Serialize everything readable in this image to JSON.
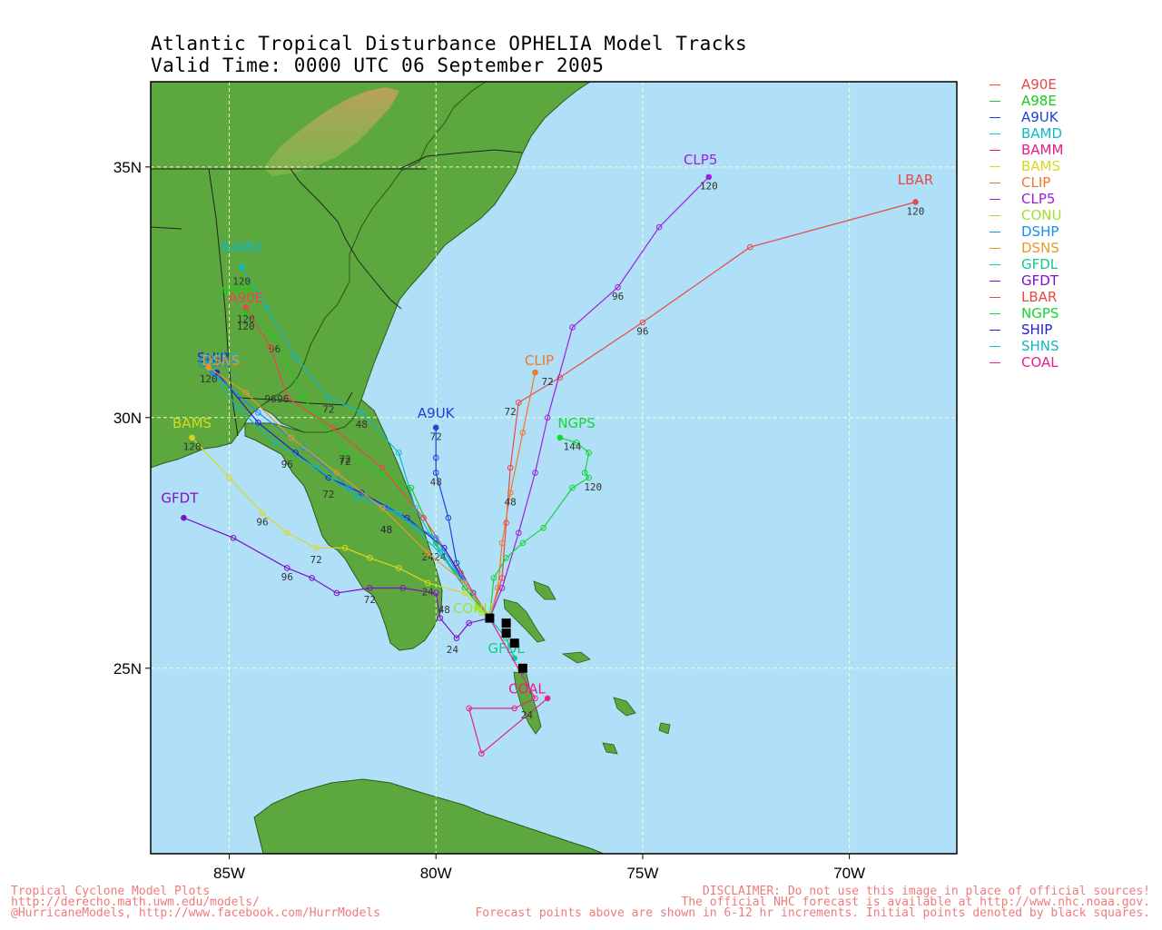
{
  "title": {
    "line1": "Atlantic Tropical Disturbance OPHELIA Model Tracks",
    "line2": "Valid Time: 0000 UTC 06 September 2005"
  },
  "map": {
    "lon_range": [
      -86.9,
      -67.4
    ],
    "lat_range": [
      21.3,
      36.7
    ],
    "lon_ticks": [
      {
        "lon": -85,
        "label": "85W"
      },
      {
        "lon": -80,
        "label": "80W"
      },
      {
        "lon": -75,
        "label": "75W"
      },
      {
        "lon": -70,
        "label": "70W"
      }
    ],
    "lat_ticks": [
      {
        "lat": 35,
        "label": "35N"
      },
      {
        "lat": 30,
        "label": "30N"
      },
      {
        "lat": 25,
        "label": "25N"
      }
    ],
    "ocean_color": "#b0e0f8",
    "land_color": "#55a33b",
    "grid": true
  },
  "legend": [
    {
      "name": "A90E",
      "color": "#e84848"
    },
    {
      "name": "A98E",
      "color": "#1ec81e"
    },
    {
      "name": "A9UK",
      "color": "#2040d8"
    },
    {
      "name": "BAMD",
      "color": "#10b8c8"
    },
    {
      "name": "BAMM",
      "color": "#e81e8c"
    },
    {
      "name": "BAMS",
      "color": "#d8d820"
    },
    {
      "name": "CLIP",
      "color": "#f07828"
    },
    {
      "name": "CLP5",
      "color": "#a020d8"
    },
    {
      "name": "CONU",
      "color": "#a0e030"
    },
    {
      "name": "DSHP",
      "color": "#1890e8"
    },
    {
      "name": "DSNS",
      "color": "#e89828"
    },
    {
      "name": "GFDL",
      "color": "#10c890"
    },
    {
      "name": "GFDT",
      "color": "#8010c8"
    },
    {
      "name": "LBAR",
      "color": "#e84848"
    },
    {
      "name": "NGPS",
      "color": "#10d830"
    },
    {
      "name": "SHIP",
      "color": "#2020d8"
    },
    {
      "name": "SHNS",
      "color": "#10b8c0"
    },
    {
      "name": "COAL",
      "color": "#e81e8c"
    }
  ],
  "tracks": [
    {
      "name": "LBAR",
      "color": "#e84848",
      "label_at": [
        -68.4,
        34.65
      ],
      "points": [
        [
          -78.7,
          26.0
        ],
        [
          -78.4,
          26.8
        ],
        [
          -78.3,
          27.9
        ],
        [
          -78.2,
          29.0
        ],
        [
          -78.0,
          30.3
        ],
        [
          -77.0,
          30.8
        ],
        [
          -75.0,
          31.9
        ],
        [
          -72.4,
          33.4
        ],
        [
          -68.4,
          34.3
        ]
      ],
      "hour_labels": [
        {
          "text": "72",
          "at": [
            -78.2,
            30.05
          ]
        },
        {
          "text": "96",
          "at": [
            -75.0,
            31.65
          ]
        },
        {
          "text": "120",
          "at": [
            -68.4,
            34.05
          ]
        }
      ]
    },
    {
      "name": "CLP5",
      "color": "#a020d8",
      "label_at": [
        -73.6,
        35.05
      ],
      "points": [
        [
          -78.7,
          26.0
        ],
        [
          -78.4,
          26.6
        ],
        [
          -78.0,
          27.7
        ],
        [
          -77.6,
          28.9
        ],
        [
          -77.3,
          30.0
        ],
        [
          -76.7,
          31.8
        ],
        [
          -75.6,
          32.6
        ],
        [
          -74.6,
          33.8
        ],
        [
          -73.4,
          34.8
        ]
      ],
      "hour_labels": [
        {
          "text": "72",
          "at": [
            -77.3,
            30.65
          ]
        },
        {
          "text": "96",
          "at": [
            -75.6,
            32.35
          ]
        },
        {
          "text": "120",
          "at": [
            -73.4,
            34.55
          ]
        }
      ]
    },
    {
      "name": "CLIP",
      "color": "#f07828",
      "label_at": [
        -77.5,
        31.05
      ],
      "points": [
        [
          -78.7,
          26.0
        ],
        [
          -78.5,
          26.6
        ],
        [
          -78.4,
          27.5
        ],
        [
          -78.2,
          28.5
        ],
        [
          -77.9,
          29.7
        ],
        [
          -77.6,
          30.9
        ]
      ],
      "hour_labels": [
        {
          "text": "48",
          "at": [
            -78.2,
            28.25
          ]
        }
      ]
    },
    {
      "name": "NGPS",
      "color": "#10d830",
      "label_at": [
        -76.6,
        29.8
      ],
      "points": [
        [
          -78.7,
          26.0
        ],
        [
          -78.6,
          26.8
        ],
        [
          -78.3,
          27.2
        ],
        [
          -77.9,
          27.5
        ],
        [
          -77.4,
          27.8
        ],
        [
          -76.7,
          28.6
        ],
        [
          -76.3,
          28.8
        ],
        [
          -76.4,
          28.9
        ],
        [
          -76.3,
          29.3
        ],
        [
          -76.6,
          29.5
        ],
        [
          -77.0,
          29.6
        ]
      ],
      "hour_labels": [
        {
          "text": "144",
          "at": [
            -76.7,
            29.35
          ]
        },
        {
          "text": "120",
          "at": [
            -76.2,
            28.55
          ]
        }
      ]
    },
    {
      "name": "A9UK",
      "color": "#2040d8",
      "label_at": [
        -80.0,
        30.0
      ],
      "points": [
        [
          -78.7,
          26.0
        ],
        [
          -79.1,
          26.5
        ],
        [
          -79.5,
          27.1
        ],
        [
          -79.7,
          28.0
        ],
        [
          -80.0,
          28.9
        ],
        [
          -80.0,
          29.2
        ],
        [
          -80.0,
          29.8
        ]
      ],
      "hour_labels": [
        {
          "text": "72",
          "at": [
            -80.0,
            29.55
          ]
        },
        {
          "text": "48",
          "at": [
            -80.0,
            28.65
          ]
        }
      ]
    },
    {
      "name": "BAMD",
      "color": "#10b8c8",
      "label_at": [
        -84.7,
        33.3
      ],
      "points": [
        [
          -78.7,
          26.0
        ],
        [
          -79.3,
          26.6
        ],
        [
          -79.9,
          27.3
        ],
        [
          -80.5,
          28.2
        ],
        [
          -80.9,
          29.3
        ],
        [
          -81.8,
          30.1
        ],
        [
          -82.6,
          30.4
        ],
        [
          -83.4,
          31.2
        ],
        [
          -84.1,
          32.2
        ],
        [
          -84.7,
          33.0
        ]
      ],
      "hour_labels": [
        {
          "text": "48",
          "at": [
            -81.8,
            29.8
          ]
        },
        {
          "text": "72",
          "at": [
            -82.6,
            30.1
          ]
        },
        {
          "text": "96",
          "at": [
            -83.9,
            31.3
          ]
        },
        {
          "text": "120",
          "at": [
            -84.7,
            32.65
          ]
        }
      ]
    },
    {
      "name": "A98E",
      "color": "#1ec81e",
      "label_at": [
        -84.8,
        32.45
      ],
      "points": [
        [
          -78.7,
          26.0
        ],
        [
          -79.3,
          26.6
        ],
        [
          -80.0,
          27.5
        ],
        [
          -80.6,
          28.6
        ],
        [
          -81.3,
          28.9
        ],
        [
          -82.2,
          29.3
        ],
        [
          -83.2,
          30.4
        ],
        [
          -83.9,
          31.6
        ],
        [
          -84.6,
          32.1
        ]
      ],
      "hour_labels": [
        {
          "text": "72",
          "at": [
            -82.2,
            29.05
          ]
        },
        {
          "text": "120",
          "at": [
            -84.6,
            31.9
          ]
        }
      ]
    },
    {
      "name": "A90E",
      "color": "#e84848",
      "label_at": [
        -84.6,
        32.3
      ],
      "points": [
        [
          -78.7,
          26.0
        ],
        [
          -79.4,
          26.9
        ],
        [
          -80.3,
          28.0
        ],
        [
          -81.3,
          29.0
        ],
        [
          -82.5,
          29.8
        ],
        [
          -83.6,
          30.4
        ],
        [
          -84.0,
          31.4
        ],
        [
          -84.6,
          32.2
        ]
      ],
      "hour_labels": [
        {
          "text": "96",
          "at": [
            -83.7,
            30.3
          ]
        },
        {
          "text": "120",
          "at": [
            -84.6,
            31.75
          ]
        }
      ]
    },
    {
      "name": "SHIP",
      "color": "#2020d8",
      "label_at": [
        -85.4,
        31.1
      ],
      "points": [
        [
          -78.7,
          26.0
        ],
        [
          -79.3,
          26.7
        ],
        [
          -79.8,
          27.4
        ],
        [
          -80.7,
          28.0
        ],
        [
          -81.8,
          28.5
        ],
        [
          -82.6,
          28.8
        ],
        [
          -83.4,
          29.3
        ],
        [
          -84.3,
          29.9
        ],
        [
          -85.3,
          30.9
        ]
      ],
      "hour_labels": [
        {
          "text": "24",
          "at": [
            -79.9,
            27.15
          ]
        },
        {
          "text": "48",
          "at": [
            -81.2,
            27.7
          ]
        },
        {
          "text": "72",
          "at": [
            -82.6,
            28.4
          ]
        },
        {
          "text": "96",
          "at": [
            -83.6,
            29.0
          ]
        }
      ]
    },
    {
      "name": "SHNS",
      "color": "#10b8c0",
      "label_at": [
        -85.2,
        31.1
      ],
      "points": [
        [
          -78.7,
          26.0
        ],
        [
          -79.3,
          26.7
        ],
        [
          -79.9,
          27.3
        ],
        [
          -80.9,
          28.1
        ],
        [
          -81.9,
          28.4
        ],
        [
          -82.9,
          29.0
        ],
        [
          -83.9,
          29.5
        ],
        [
          -84.8,
          30.2
        ],
        [
          -85.5,
          31.0
        ]
      ],
      "hour_labels": [
        {
          "text": "24",
          "at": [
            -80.2,
            27.15
          ]
        },
        {
          "text": "48",
          "at": [
            -81.2,
            27.7
          ]
        },
        {
          "text": "72",
          "at": [
            -82.2,
            29.1
          ]
        },
        {
          "text": "96",
          "at": [
            -84.0,
            30.3
          ]
        },
        {
          "text": "120",
          "at": [
            -85.5,
            30.7
          ]
        }
      ]
    },
    {
      "name": "DSHP",
      "color": "#1890e8",
      "label_at": [
        -85.3,
        31.0
      ],
      "points": [
        [
          -78.7,
          26.0
        ],
        [
          -79.4,
          26.8
        ],
        [
          -80.0,
          27.6
        ],
        [
          -81.2,
          28.2
        ],
        [
          -82.1,
          28.6
        ],
        [
          -83.2,
          29.4
        ],
        [
          -84.3,
          30.1
        ],
        [
          -85.4,
          30.9
        ]
      ]
    },
    {
      "name": "DSNS",
      "color": "#e89828",
      "label_at": [
        -85.2,
        31.05
      ],
      "points": [
        [
          -78.7,
          26.0
        ],
        [
          -79.3,
          26.7
        ],
        [
          -80.2,
          27.3
        ],
        [
          -81.3,
          28.2
        ],
        [
          -82.4,
          28.9
        ],
        [
          -83.5,
          29.6
        ],
        [
          -84.6,
          30.5
        ],
        [
          -85.5,
          31.0
        ]
      ]
    },
    {
      "name": "BAMS",
      "color": "#d8d820",
      "label_at": [
        -85.9,
        29.8
      ],
      "points": [
        [
          -78.7,
          26.0
        ],
        [
          -79.3,
          26.5
        ],
        [
          -80.2,
          26.7
        ],
        [
          -80.9,
          27.0
        ],
        [
          -81.6,
          27.2
        ],
        [
          -82.2,
          27.4
        ],
        [
          -82.9,
          27.4
        ],
        [
          -83.6,
          27.7
        ],
        [
          -84.2,
          28.1
        ],
        [
          -85.0,
          28.8
        ],
        [
          -85.9,
          29.6
        ]
      ],
      "hour_labels": [
        {
          "text": "24",
          "at": [
            -80.2,
            26.45
          ]
        },
        {
          "text": "72",
          "at": [
            -82.9,
            27.1
          ]
        },
        {
          "text": "96",
          "at": [
            -84.2,
            27.85
          ]
        },
        {
          "text": "120",
          "at": [
            -85.9,
            29.35
          ]
        }
      ]
    },
    {
      "name": "GFDT",
      "color": "#8010c8",
      "label_at": [
        -86.2,
        28.3
      ],
      "points": [
        [
          -78.7,
          26.0
        ],
        [
          -79.2,
          25.9
        ],
        [
          -79.5,
          25.6
        ],
        [
          -79.9,
          26.0
        ],
        [
          -80.0,
          26.5
        ],
        [
          -80.8,
          26.6
        ],
        [
          -81.6,
          26.6
        ],
        [
          -82.4,
          26.5
        ],
        [
          -83.0,
          26.8
        ],
        [
          -83.6,
          27.0
        ],
        [
          -84.9,
          27.6
        ],
        [
          -86.1,
          28.0
        ]
      ],
      "hour_labels": [
        {
          "text": "24",
          "at": [
            -79.6,
            25.3
          ]
        },
        {
          "text": "48",
          "at": [
            -79.8,
            26.1
          ]
        },
        {
          "text": "72",
          "at": [
            -81.6,
            26.3
          ]
        },
        {
          "text": "96",
          "at": [
            -83.6,
            26.75
          ]
        }
      ]
    },
    {
      "name": "GFDL",
      "color": "#10c890",
      "label_at": [
        -78.3,
        25.3
      ],
      "points": [
        [
          -78.7,
          26.0
        ],
        [
          -78.3,
          25.6
        ],
        [
          -78.1,
          25.2
        ]
      ]
    },
    {
      "name": "CONU",
      "color": "#a0e030",
      "label_at": [
        -79.1,
        26.1
      ],
      "points": [
        [
          -78.7,
          26.0
        ],
        [
          -78.9,
          26.1
        ],
        [
          -79.0,
          26.2
        ]
      ]
    },
    {
      "name": "COAL",
      "color": "#e81e8c",
      "label_at": [
        -77.8,
        24.5
      ],
      "points": [
        [
          -78.7,
          26.0
        ],
        [
          -77.6,
          24.4
        ],
        [
          -78.1,
          24.2
        ],
        [
          -79.2,
          24.2
        ],
        [
          -78.9,
          23.3
        ],
        [
          -77.3,
          24.4
        ]
      ],
      "hour_labels": [
        {
          "text": "24",
          "at": [
            -77.8,
            24.0
          ]
        }
      ]
    }
  ],
  "initial_points": [
    [
      -78.7,
      26.0
    ],
    [
      -78.3,
      25.9
    ],
    [
      -78.3,
      25.7
    ],
    [
      -78.1,
      25.5
    ],
    [
      -77.9,
      25.0
    ]
  ],
  "footer": {
    "left1": "Tropical Cyclone Model Plots",
    "left2": "http://derecho.math.uwm.edu/models/",
    "left3": "@HurricaneModels, http://www.facebook.com/HurrModels",
    "right1": "DISCLAIMER: Do not use this image in place of official sources!",
    "right2": "The official NHC forecast is available at http://www.nhc.noaa.gov.",
    "right3": "Forecast points above are shown in 6-12 hr increments. Initial points denoted by black squares."
  }
}
